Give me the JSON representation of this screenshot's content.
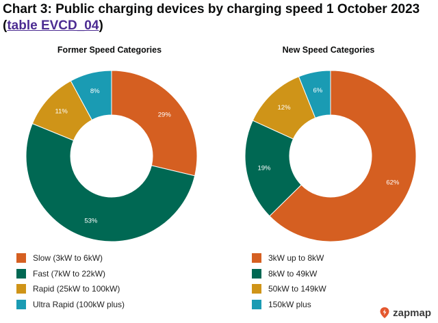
{
  "header": {
    "title_prefix": "Chart 3: Public charging devices by charging speed 1 October 2023 (",
    "link_text": "table EVCD_04",
    "title_suffix": ")"
  },
  "brand": {
    "name": "zapmap",
    "icon": "lightning-pin-icon",
    "color": "#e4572e"
  },
  "chart_data": [
    {
      "type": "pie",
      "title": "Former Speed Categories",
      "donut": true,
      "legend_position": "bottom",
      "categories": [
        "Slow (3kW to 6kW)",
        "Fast (7kW to 22kW)",
        "Rapid (25kW to 100kW)",
        "Ultra Rapid (100kW plus)"
      ],
      "values": [
        29,
        53,
        11,
        8
      ],
      "data_labels": [
        "29%",
        "53%",
        "11%",
        "8%"
      ],
      "colors": [
        "#d55f21",
        "#006853",
        "#cf9418",
        "#1a9bb3"
      ]
    },
    {
      "type": "pie",
      "title": "New Speed Categories",
      "donut": true,
      "legend_position": "bottom",
      "categories": [
        "3kW up to 8kW",
        "8kW to 49kW",
        "50kW to 149kW",
        "150kW plus"
      ],
      "values": [
        62,
        19,
        12,
        6
      ],
      "data_labels": [
        "62%",
        "19%",
        "12%",
        "6%"
      ],
      "colors": [
        "#d55f21",
        "#006853",
        "#cf9418",
        "#1a9bb3"
      ]
    }
  ]
}
